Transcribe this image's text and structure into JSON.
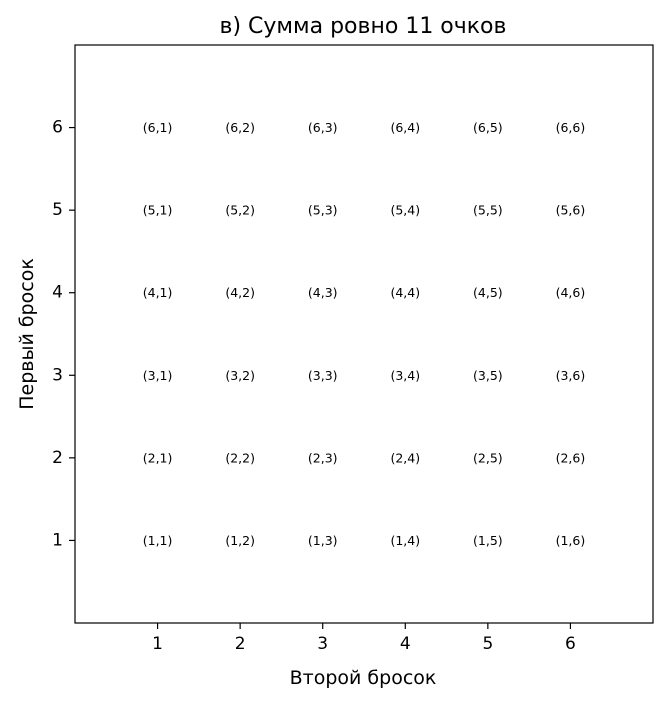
{
  "chart_data": {
    "type": "heatmap",
    "title": "в) Сумма ровно 11 очков",
    "xlabel": "Второй бросок",
    "ylabel": "Первый бросок",
    "x_ticks": [
      "1",
      "2",
      "3",
      "4",
      "5",
      "6"
    ],
    "y_ticks": [
      "1",
      "2",
      "3",
      "4",
      "5",
      "6"
    ],
    "xlim": [
      0,
      7
    ],
    "ylim": [
      7,
      0
    ],
    "grid": false,
    "cell_labels": [
      [
        "(1,1)",
        "(1,2)",
        "(1,3)",
        "(1,4)",
        "(1,5)",
        "(1,6)"
      ],
      [
        "(2,1)",
        "(2,2)",
        "(2,3)",
        "(2,4)",
        "(2,5)",
        "(2,6)"
      ],
      [
        "(3,1)",
        "(3,2)",
        "(3,3)",
        "(3,4)",
        "(3,5)",
        "(3,6)"
      ],
      [
        "(4,1)",
        "(4,2)",
        "(4,3)",
        "(4,4)",
        "(4,5)",
        "(4,6)"
      ],
      [
        "(5,1)",
        "(5,2)",
        "(5,3)",
        "(5,4)",
        "(5,5)",
        "(5,6)"
      ],
      [
        "(6,1)",
        "(6,2)",
        "(6,3)",
        "(6,4)",
        "(6,5)",
        "(6,6)"
      ]
    ],
    "highlighted_cells": [
      {
        "first": 5,
        "second": 6
      },
      {
        "first": 6,
        "second": 5
      }
    ],
    "colors": {
      "highlight": "#90ee90",
      "cell": "#ffffff",
      "border": "#000000"
    }
  }
}
